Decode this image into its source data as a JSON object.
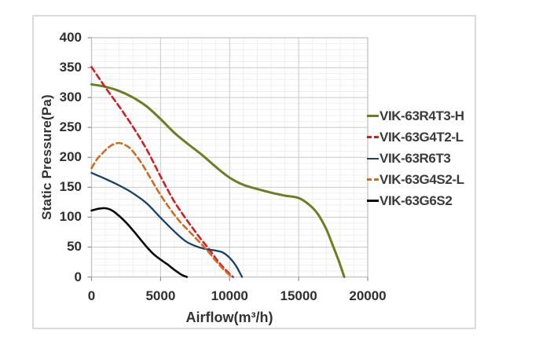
{
  "chart_data": {
    "type": "line",
    "title": "",
    "xlabel": "Airflow(m³/h)",
    "ylabel": "Static Pressure(Pa)",
    "xlim": [
      0,
      20000
    ],
    "ylim": [
      0,
      400
    ],
    "x_ticks": [
      0,
      5000,
      10000,
      15000,
      20000
    ],
    "y_ticks": [
      0,
      50,
      100,
      150,
      200,
      250,
      300,
      350,
      400
    ],
    "grid": "major and minor gridlines on",
    "minor_x_step": 1000,
    "minor_y_step": 10,
    "legend_position": "right of plot",
    "series": [
      {
        "name": "VIK-63R4T3-H",
        "color": "#6b7f22",
        "style": "solid",
        "width": 3,
        "x": [
          0,
          1000,
          2000,
          3000,
          4000,
          5000,
          6000,
          7000,
          8000,
          9000,
          10000,
          11000,
          12000,
          13000,
          14000,
          15000,
          15800,
          16400,
          17000,
          17400,
          17900,
          18300
        ],
        "y": [
          322,
          318,
          311,
          300,
          285,
          264,
          241,
          222,
          204,
          184,
          166,
          154,
          147,
          141,
          136,
          132,
          120,
          105,
          80,
          57,
          27,
          0
        ]
      },
      {
        "name": "VIK-63G4T2-L",
        "color": "#d41d22",
        "style": "dashed",
        "width": 2.6,
        "x": [
          0,
          1000,
          2000,
          3000,
          4000,
          5000,
          6000,
          7000,
          8000,
          8500,
          9000,
          9500,
          10000,
          10250
        ],
        "y": [
          351,
          317,
          285,
          251,
          213,
          168,
          126,
          92,
          61,
          47,
          31,
          17,
          5,
          0
        ]
      },
      {
        "name": "VIK-63R6T3",
        "color": "#16416b",
        "style": "solid",
        "width": 2.3,
        "x": [
          0,
          1000,
          2000,
          3000,
          4000,
          5000,
          6000,
          6800,
          7500,
          8200,
          9000,
          9500,
          10000,
          10450,
          10900
        ],
        "y": [
          174,
          164,
          153,
          140,
          123,
          99,
          76,
          60,
          52,
          47,
          44,
          41,
          32,
          19,
          0
        ]
      },
      {
        "name": "VIK-63G4S2-L",
        "color": "#d06c20",
        "style": "dashed",
        "width": 2.6,
        "x": [
          0,
          400,
          800,
          1200,
          1600,
          2000,
          2400,
          2800,
          3200,
          3600,
          4000,
          4500,
          5000,
          5500,
          6000,
          6500,
          7000,
          7500,
          8000,
          8500,
          9000,
          9500,
          10000,
          10150
        ],
        "y": [
          182,
          197,
          207,
          216,
          222,
          224,
          221,
          215,
          204,
          191,
          176,
          156,
          137,
          120,
          104,
          90,
          78,
          66,
          54,
          41,
          27,
          14,
          3,
          0
        ]
      },
      {
        "name": "VIK-63G6S2",
        "color": "#0a0a0a",
        "style": "solid",
        "width": 2.6,
        "x": [
          0,
          500,
          1000,
          1500,
          2000,
          2500,
          3000,
          3500,
          4000,
          4500,
          5000,
          5500,
          6000,
          6500,
          6900
        ],
        "y": [
          111,
          114,
          115,
          111,
          102,
          91,
          78,
          64,
          50,
          38,
          29,
          21,
          12,
          4,
          0
        ]
      }
    ],
    "style_colors": {
      "frame_border": "#dadada",
      "plot_border": "#bfbfbf",
      "grid_major": "#c8c8c8",
      "grid_minor": "#efefef",
      "tick_mark": "#8c8c8c",
      "text": "#2f2f2f"
    }
  }
}
